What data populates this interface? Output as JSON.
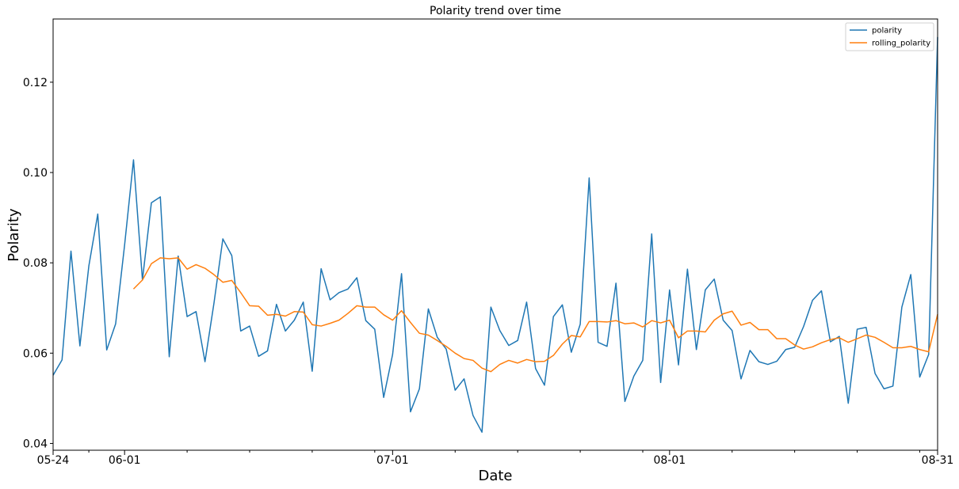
{
  "chart_data": {
    "type": "line",
    "title": "Polarity trend over time",
    "xlabel": "Date",
    "ylabel": "Polarity",
    "xlim": [
      "2019-05-24",
      "2019-08-31"
    ],
    "ylim": [
      0.0385,
      0.134
    ],
    "x_ticks": [
      {
        "date": "2019-05-24",
        "label": "05-24"
      },
      {
        "date": "2019-06-01",
        "label": "06-01"
      },
      {
        "date": "2019-07-01",
        "label": "07-01"
      },
      {
        "date": "2019-08-01",
        "label": "08-01"
      },
      {
        "date": "2019-08-31",
        "label": "08-31"
      }
    ],
    "x_minor_ticks": [
      "2019-05-28",
      "2019-06-08",
      "2019-06-15",
      "2019-06-22",
      "2019-06-29",
      "2019-07-08",
      "2019-07-15",
      "2019-07-22",
      "2019-07-29",
      "2019-08-08",
      "2019-08-15",
      "2019-08-22",
      "2019-08-29"
    ],
    "y_ticks": [
      0.04,
      0.06,
      0.08,
      0.1,
      0.12
    ],
    "y_tick_labels": [
      "0.04",
      "0.06",
      "0.08",
      "0.10",
      "0.12"
    ],
    "grid": false,
    "legend_position": "top-right",
    "series": [
      {
        "name": "polarity",
        "color": "#1f77b4",
        "start_date": "2019-05-24",
        "values": [
          0.0551,
          0.0585,
          0.0826,
          0.0616,
          0.0793,
          0.0908,
          0.0607,
          0.0665,
          0.0839,
          0.1028,
          0.0762,
          0.0933,
          0.0946,
          0.0592,
          0.0815,
          0.0681,
          0.0692,
          0.0581,
          0.071,
          0.0853,
          0.0816,
          0.0649,
          0.066,
          0.0593,
          0.0605,
          0.0708,
          0.0649,
          0.0673,
          0.0713,
          0.056,
          0.0787,
          0.0718,
          0.0734,
          0.0742,
          0.0767,
          0.0672,
          0.0653,
          0.0502,
          0.0597,
          0.0776,
          0.047,
          0.0521,
          0.0698,
          0.0635,
          0.0609,
          0.0518,
          0.0543,
          0.0462,
          0.0425,
          0.0702,
          0.065,
          0.0617,
          0.0628,
          0.0713,
          0.0566,
          0.0529,
          0.0681,
          0.0707,
          0.0602,
          0.0664,
          0.0988,
          0.0624,
          0.0615,
          0.0755,
          0.0493,
          0.0549,
          0.0584,
          0.0864,
          0.0535,
          0.074,
          0.0574,
          0.0786,
          0.0608,
          0.074,
          0.0764,
          0.0673,
          0.065,
          0.0543,
          0.0606,
          0.0581,
          0.0575,
          0.0582,
          0.0608,
          0.0613,
          0.0659,
          0.0717,
          0.0738,
          0.0625,
          0.0637,
          0.0489,
          0.0653,
          0.0657,
          0.0555,
          0.0521,
          0.0527,
          0.0702,
          0.0774,
          0.0547,
          0.0597,
          0.13
        ]
      },
      {
        "name": "rolling_polarity",
        "color": "#ff7f0e",
        "start_date": "2019-06-02",
        "values": [
          0.0742,
          0.0762,
          0.0798,
          0.0811,
          0.0809,
          0.0811,
          0.0786,
          0.0796,
          0.0788,
          0.0774,
          0.0757,
          0.0761,
          0.0734,
          0.0705,
          0.0704,
          0.0684,
          0.0686,
          0.0682,
          0.0692,
          0.0691,
          0.0663,
          0.066,
          0.0666,
          0.0673,
          0.0688,
          0.0705,
          0.0702,
          0.0702,
          0.0685,
          0.0673,
          0.0694,
          0.0668,
          0.0644,
          0.064,
          0.0628,
          0.0615,
          0.06,
          0.0588,
          0.0584,
          0.0567,
          0.0559,
          0.0575,
          0.0584,
          0.0578,
          0.0586,
          0.0581,
          0.0582,
          0.0595,
          0.062,
          0.0639,
          0.0636,
          0.067,
          0.067,
          0.0669,
          0.0672,
          0.0665,
          0.0667,
          0.0658,
          0.0672,
          0.0667,
          0.0673,
          0.0634,
          0.0649,
          0.0649,
          0.0647,
          0.0673,
          0.0687,
          0.0693,
          0.0662,
          0.0668,
          0.0652,
          0.0652,
          0.0632,
          0.0632,
          0.0618,
          0.0609,
          0.0614,
          0.0623,
          0.063,
          0.0634,
          0.0624,
          0.0632,
          0.064,
          0.0635,
          0.0624,
          0.0612,
          0.0612,
          0.0615,
          0.0608,
          0.0603,
          0.0686
        ]
      }
    ]
  }
}
